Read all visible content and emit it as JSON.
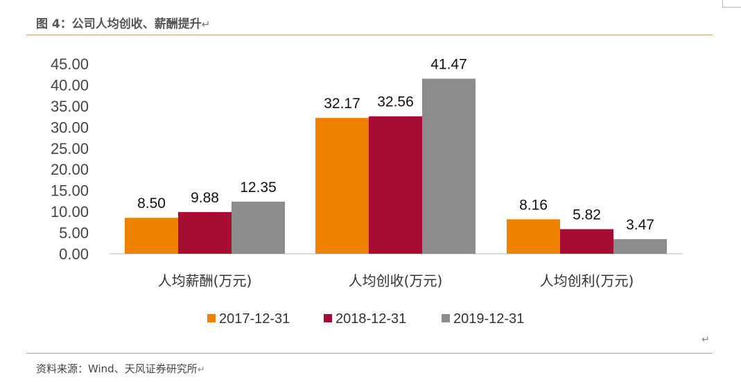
{
  "figure": {
    "title": "图 4：公司人均创收、薪酬提升",
    "return_mark": "↵",
    "source": "资料来源：Wind、天风证券研究所"
  },
  "chart_data": {
    "type": "bar",
    "title": "",
    "xlabel": "",
    "ylabel": "",
    "categories": [
      "人均薪酬(万元)",
      "人均创收(万元)",
      "人均创利(万元)"
    ],
    "series": [
      {
        "name": "2017-12-31",
        "color": "#ee8100",
        "values": [
          8.5,
          32.17,
          8.16
        ]
      },
      {
        "name": "2018-12-31",
        "color": "#a50e32",
        "values": [
          9.88,
          32.56,
          5.82
        ]
      },
      {
        "name": "2019-12-31",
        "color": "#8c8c8c",
        "values": [
          12.35,
          41.47,
          3.47
        ]
      }
    ],
    "value_labels": [
      [
        "8.50",
        "32.17",
        "8.16"
      ],
      [
        "9.88",
        "32.56",
        "5.82"
      ],
      [
        "12.35",
        "41.47",
        "3.47"
      ]
    ],
    "ylim": [
      0,
      45
    ],
    "yticks": [
      "0.00",
      "5.00",
      "10.00",
      "15.00",
      "20.00",
      "25.00",
      "30.00",
      "35.00",
      "40.00",
      "45.00"
    ],
    "grid": false,
    "legend_position": "bottom"
  }
}
